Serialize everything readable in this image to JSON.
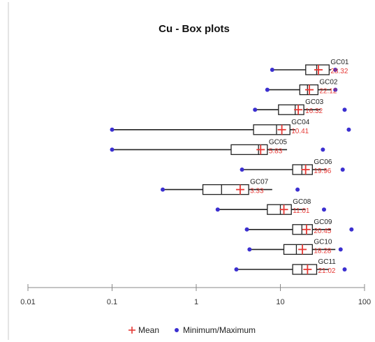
{
  "chart_data": {
    "type": "box",
    "title": "Cu - Box plots",
    "x_scale": "log",
    "xlim": [
      0.01,
      100
    ],
    "x_ticks": [
      "0.01",
      "0.1",
      "1",
      "10",
      "100"
    ],
    "grid": false,
    "legend_position": "bottom",
    "legend": [
      {
        "name": "Mean",
        "marker": "plus",
        "color": "#e53935"
      },
      {
        "name": "Minimum/Maximum",
        "marker": "dot",
        "color": "#3b2fd0"
      }
    ],
    "colors": {
      "box": "#222222",
      "mean": "#e53935",
      "minmax": "#3b2fd0",
      "axis": "#888888"
    },
    "series": [
      {
        "name": "GC01",
        "min": 8.0,
        "whisker_low": 8.0,
        "q1": 20.0,
        "median": 27.0,
        "q3": 38.0,
        "whisker_high": 40.0,
        "max": 45.0,
        "mean": 28.32,
        "mean_label": "28.32"
      },
      {
        "name": "GC02",
        "min": 7.0,
        "whisker_low": 7.0,
        "q1": 17.0,
        "median": 21.0,
        "q3": 28.0,
        "whisker_high": 40.0,
        "max": 45.0,
        "mean": 22.12,
        "mean_label": "22.12"
      },
      {
        "name": "GC03",
        "min": 5.0,
        "whisker_low": 5.0,
        "q1": 9.5,
        "median": 15.0,
        "q3": 19.0,
        "whisker_high": 30.0,
        "max": 58.0,
        "mean": 16.32,
        "mean_label": "16.32"
      },
      {
        "name": "GC04",
        "min": 0.1,
        "whisker_low": 0.1,
        "q1": 4.8,
        "median": 9.0,
        "q3": 13.0,
        "whisker_high": 15.0,
        "max": 65.0,
        "mean": 10.41,
        "mean_label": "10.41"
      },
      {
        "name": "GC05",
        "min": 0.1,
        "whisker_low": 0.1,
        "q1": 2.6,
        "median": 5.5,
        "q3": 7.0,
        "whisker_high": 12.0,
        "max": 32.0,
        "mean": 5.83,
        "mean_label": "5.83"
      },
      {
        "name": "GC06",
        "min": 3.5,
        "whisker_low": 3.5,
        "q1": 14.0,
        "median": 18.0,
        "q3": 24.0,
        "whisker_high": 35.0,
        "max": 55.0,
        "mean": 19.96,
        "mean_label": "19.96"
      },
      {
        "name": "GC07",
        "min": 0.4,
        "whisker_low": 0.4,
        "q1": 1.2,
        "median": 2.0,
        "q3": 4.2,
        "whisker_high": 8.0,
        "max": 16.0,
        "mean": 3.33,
        "mean_label": "3.33"
      },
      {
        "name": "GC08",
        "min": 1.8,
        "whisker_low": 1.8,
        "q1": 7.0,
        "median": 10.0,
        "q3": 13.5,
        "whisker_high": 20.0,
        "max": 33.0,
        "mean": 11.01,
        "mean_label": "11.01"
      },
      {
        "name": "GC09",
        "min": 4.0,
        "whisker_low": 4.0,
        "q1": 14.0,
        "median": 18.0,
        "q3": 24.0,
        "whisker_high": 40.0,
        "max": 70.0,
        "mean": 20.45,
        "mean_label": "20.45"
      },
      {
        "name": "GC10",
        "min": 4.3,
        "whisker_low": 4.3,
        "q1": 11.0,
        "median": 15.5,
        "q3": 24.0,
        "whisker_high": 45.0,
        "max": 52.0,
        "mean": 18.28,
        "mean_label": "18.28"
      },
      {
        "name": "GC11",
        "min": 3.0,
        "whisker_low": 3.0,
        "q1": 14.0,
        "median": 18.0,
        "q3": 27.0,
        "whisker_high": 38.0,
        "max": 58.0,
        "mean": 21.02,
        "mean_label": "21.02"
      }
    ]
  }
}
